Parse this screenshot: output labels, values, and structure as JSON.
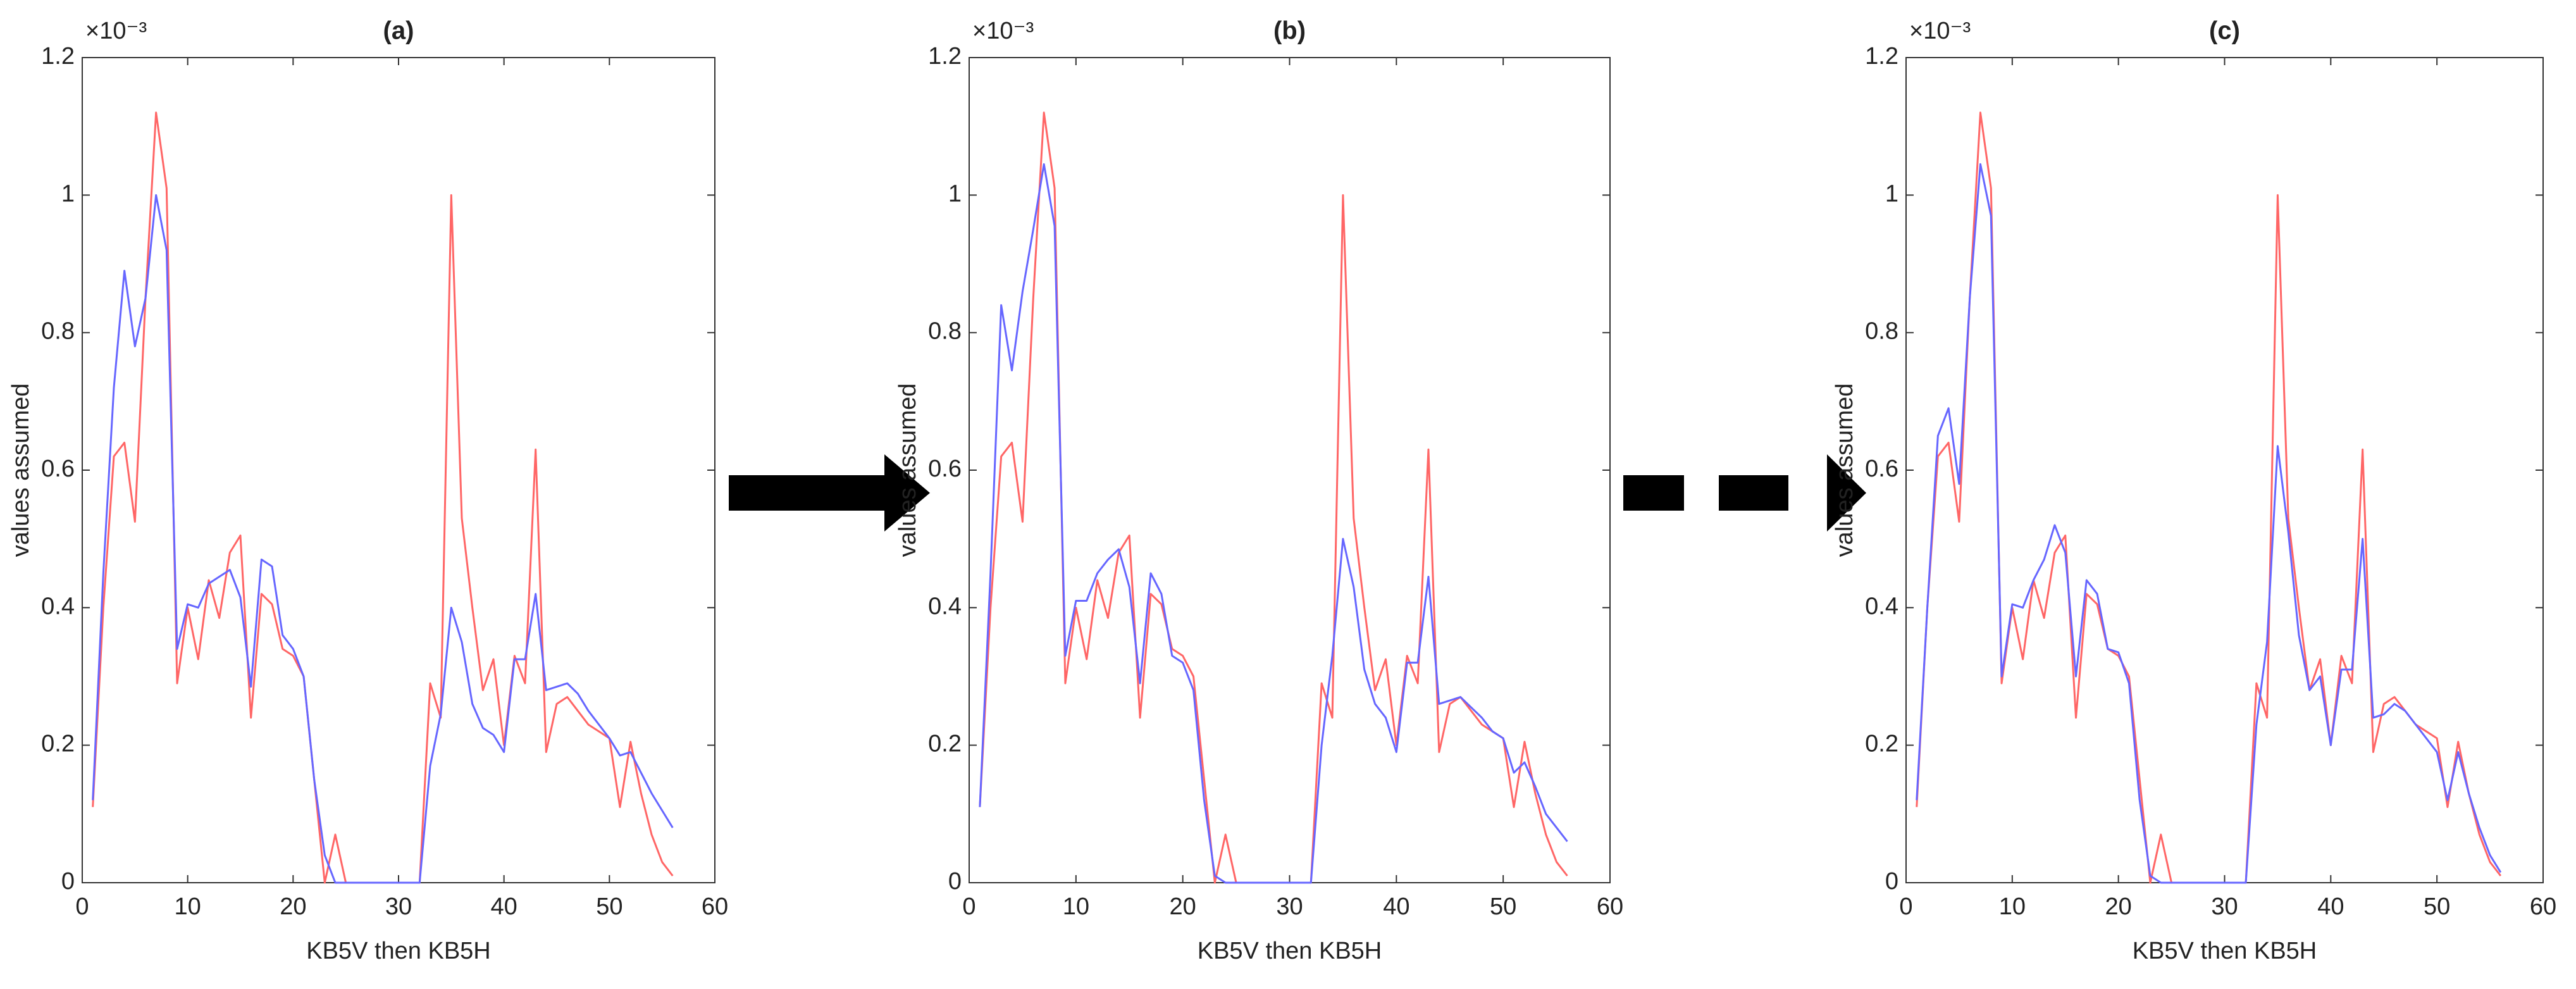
{
  "chart_data": [
    {
      "type": "line",
      "title": "(a)",
      "xlabel": "KB5V then KB5H",
      "ylabel": "values assumed",
      "y_exponent": "×10⁻³",
      "xlim": [
        0,
        60
      ],
      "xticks": [
        0,
        10,
        20,
        30,
        40,
        50,
        60
      ],
      "ylim": [
        0,
        1.2
      ],
      "yticks": [
        0,
        0.2,
        0.4,
        0.6,
        0.8,
        1,
        1.2
      ],
      "x": [
        1,
        2,
        3,
        4,
        5,
        6,
        7,
        8,
        9,
        10,
        11,
        12,
        13,
        14,
        15,
        16,
        17,
        18,
        19,
        20,
        21,
        22,
        23,
        24,
        25,
        26,
        27,
        28,
        29,
        30,
        31,
        32,
        33,
        34,
        35,
        36,
        37,
        38,
        39,
        40,
        41,
        42,
        43,
        44,
        45,
        46,
        47,
        48,
        49,
        50,
        51,
        52,
        53,
        54,
        55,
        56
      ],
      "series": [
        {
          "color": "#ff6666",
          "values": [
            0.11,
            0.4,
            0.62,
            0.64,
            0.525,
            0.85,
            1.12,
            1.01,
            0.29,
            0.4,
            0.325,
            0.44,
            0.385,
            0.48,
            0.505,
            0.24,
            0.42,
            0.405,
            0.34,
            0.33,
            0.3,
            0.15,
            0,
            0.07,
            0,
            0,
            0,
            0,
            0,
            0,
            0,
            0,
            0.29,
            0.24,
            1.0,
            0.53,
            0.4,
            0.28,
            0.325,
            0.2,
            0.33,
            0.29,
            0.63,
            0.19,
            0.26,
            0.27,
            0.25,
            0.23,
            0.22,
            0.21,
            0.11,
            0.205,
            0.13,
            0.07,
            0.03,
            0.01
          ]
        },
        {
          "color": "#6666ff",
          "values": [
            0.12,
            0.45,
            0.72,
            0.89,
            0.78,
            0.85,
            1.0,
            0.92,
            0.34,
            0.405,
            0.4,
            0.435,
            0.445,
            0.455,
            0.415,
            0.285,
            0.47,
            0.46,
            0.36,
            0.34,
            0.3,
            0.15,
            0.04,
            0,
            0,
            0,
            0,
            0,
            0,
            0,
            0,
            0,
            0.17,
            0.245,
            0.4,
            0.35,
            0.26,
            0.225,
            0.215,
            0.19,
            0.325,
            0.325,
            0.42,
            0.28,
            0.285,
            0.29,
            0.275,
            0.25,
            0.23,
            0.21,
            0.185,
            0.19,
            0.16,
            0.13,
            0.105,
            0.08
          ]
        }
      ]
    },
    {
      "type": "line",
      "title": "(b)",
      "xlabel": "KB5V then KB5H",
      "ylabel": "values assumed",
      "y_exponent": "×10⁻³",
      "xlim": [
        0,
        60
      ],
      "xticks": [
        0,
        10,
        20,
        30,
        40,
        50,
        60
      ],
      "ylim": [
        0,
        1.2
      ],
      "yticks": [
        0,
        0.2,
        0.4,
        0.6,
        0.8,
        1,
        1.2
      ],
      "x": [
        1,
        2,
        3,
        4,
        5,
        6,
        7,
        8,
        9,
        10,
        11,
        12,
        13,
        14,
        15,
        16,
        17,
        18,
        19,
        20,
        21,
        22,
        23,
        24,
        25,
        26,
        27,
        28,
        29,
        30,
        31,
        32,
        33,
        34,
        35,
        36,
        37,
        38,
        39,
        40,
        41,
        42,
        43,
        44,
        45,
        46,
        47,
        48,
        49,
        50,
        51,
        52,
        53,
        54,
        55,
        56
      ],
      "series": [
        {
          "color": "#ff6666",
          "values": [
            0.11,
            0.4,
            0.62,
            0.64,
            0.525,
            0.85,
            1.12,
            1.01,
            0.29,
            0.4,
            0.325,
            0.44,
            0.385,
            0.48,
            0.505,
            0.24,
            0.42,
            0.405,
            0.34,
            0.33,
            0.3,
            0.15,
            0,
            0.07,
            0,
            0,
            0,
            0,
            0,
            0,
            0,
            0,
            0.29,
            0.24,
            1.0,
            0.53,
            0.4,
            0.28,
            0.325,
            0.2,
            0.33,
            0.29,
            0.63,
            0.19,
            0.26,
            0.27,
            0.25,
            0.23,
            0.22,
            0.21,
            0.11,
            0.205,
            0.13,
            0.07,
            0.03,
            0.01
          ]
        },
        {
          "color": "#6666ff",
          "values": [
            0.11,
            0.45,
            0.84,
            0.745,
            0.86,
            0.95,
            1.045,
            0.955,
            0.33,
            0.41,
            0.41,
            0.45,
            0.47,
            0.485,
            0.43,
            0.29,
            0.45,
            0.42,
            0.33,
            0.32,
            0.28,
            0.12,
            0.01,
            0,
            0,
            0,
            0,
            0,
            0,
            0,
            0,
            0,
            0.2,
            0.33,
            0.5,
            0.43,
            0.31,
            0.26,
            0.24,
            0.19,
            0.32,
            0.32,
            0.445,
            0.26,
            0.265,
            0.27,
            0.255,
            0.24,
            0.22,
            0.21,
            0.16,
            0.175,
            0.14,
            0.1,
            0.08,
            0.06
          ]
        }
      ]
    },
    {
      "type": "line",
      "title": "(c)",
      "xlabel": "KB5V then KB5H",
      "ylabel": "values assumed",
      "y_exponent": "×10⁻³",
      "xlim": [
        0,
        60
      ],
      "xticks": [
        0,
        10,
        20,
        30,
        40,
        50,
        60
      ],
      "ylim": [
        0,
        1.2
      ],
      "yticks": [
        0,
        0.2,
        0.4,
        0.6,
        0.8,
        1,
        1.2
      ],
      "x": [
        1,
        2,
        3,
        4,
        5,
        6,
        7,
        8,
        9,
        10,
        11,
        12,
        13,
        14,
        15,
        16,
        17,
        18,
        19,
        20,
        21,
        22,
        23,
        24,
        25,
        26,
        27,
        28,
        29,
        30,
        31,
        32,
        33,
        34,
        35,
        36,
        37,
        38,
        39,
        40,
        41,
        42,
        43,
        44,
        45,
        46,
        47,
        48,
        49,
        50,
        51,
        52,
        53,
        54,
        55,
        56
      ],
      "series": [
        {
          "color": "#ff6666",
          "values": [
            0.11,
            0.4,
            0.62,
            0.64,
            0.525,
            0.85,
            1.12,
            1.01,
            0.29,
            0.4,
            0.325,
            0.44,
            0.385,
            0.48,
            0.505,
            0.24,
            0.42,
            0.405,
            0.34,
            0.33,
            0.3,
            0.15,
            0,
            0.07,
            0,
            0,
            0,
            0,
            0,
            0,
            0,
            0,
            0.29,
            0.24,
            1.0,
            0.53,
            0.4,
            0.28,
            0.325,
            0.2,
            0.33,
            0.29,
            0.63,
            0.19,
            0.26,
            0.27,
            0.25,
            0.23,
            0.22,
            0.21,
            0.11,
            0.205,
            0.13,
            0.07,
            0.03,
            0.01
          ]
        },
        {
          "color": "#6666ff",
          "values": [
            0.12,
            0.4,
            0.65,
            0.69,
            0.58,
            0.85,
            1.045,
            0.97,
            0.3,
            0.405,
            0.4,
            0.44,
            0.47,
            0.52,
            0.48,
            0.3,
            0.44,
            0.42,
            0.34,
            0.335,
            0.29,
            0.12,
            0.01,
            0,
            0,
            0,
            0,
            0,
            0,
            0,
            0,
            0,
            0.23,
            0.35,
            0.635,
            0.51,
            0.36,
            0.28,
            0.3,
            0.2,
            0.31,
            0.31,
            0.5,
            0.24,
            0.245,
            0.26,
            0.25,
            0.23,
            0.21,
            0.19,
            0.12,
            0.19,
            0.13,
            0.08,
            0.04,
            0.015
          ]
        }
      ]
    }
  ]
}
